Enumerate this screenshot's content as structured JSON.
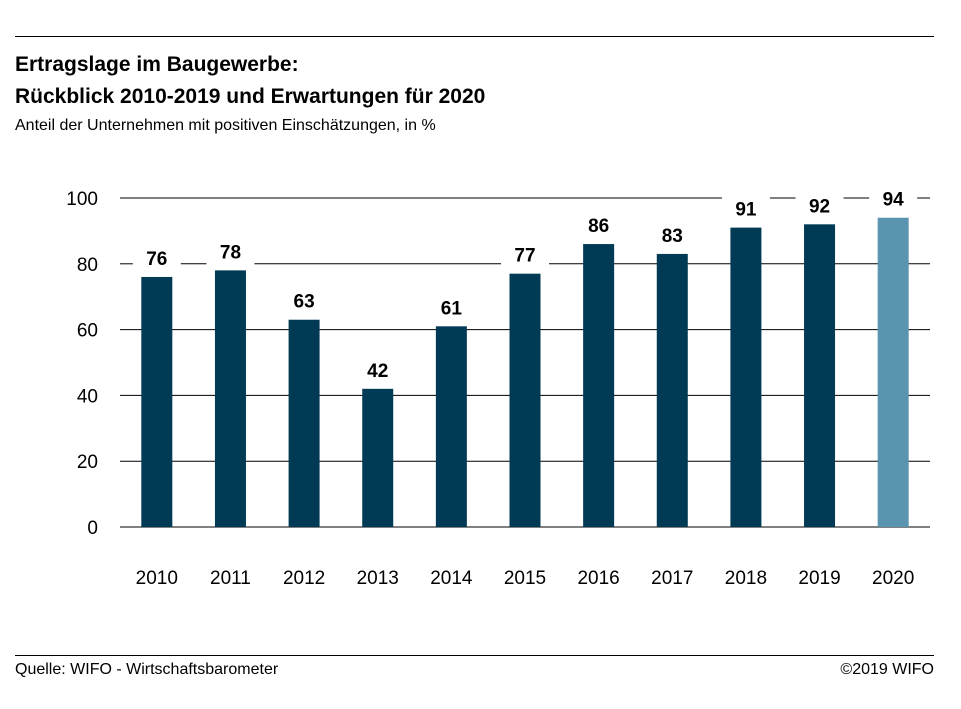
{
  "header": {
    "title_line1": "Ertragslage im Baugewerbe:",
    "title_line2": "Rückblick 2010-2019 und Erwartungen für 2020",
    "subtitle": "Anteil der Unternehmen mit positiven Einschätzungen, in %"
  },
  "footer": {
    "source": "Quelle: WIFO - Wirtschaftsbarometer",
    "copyright": "©2019 WIFO"
  },
  "colors": {
    "bar": "#003A54",
    "bar_forecast": "#5A94AE",
    "grid": "#000000"
  },
  "chart_data": {
    "type": "bar",
    "title": "Ertragslage im Baugewerbe: Rückblick 2010-2019 und Erwartungen für 2020",
    "subtitle": "Anteil der Unternehmen mit positiven Einschätzungen, in %",
    "categories": [
      "2010",
      "2011",
      "2012",
      "2013",
      "2014",
      "2015",
      "2016",
      "2017",
      "2018",
      "2019",
      "2020"
    ],
    "values": [
      76,
      78,
      63,
      42,
      61,
      77,
      86,
      83,
      91,
      92,
      94
    ],
    "forecast_categories": [
      "2020"
    ],
    "ylim": [
      0,
      100
    ],
    "yticks": [
      0,
      20,
      40,
      60,
      80,
      100
    ],
    "grid": true,
    "data_labels": true,
    "xlabel": "",
    "ylabel": ""
  }
}
